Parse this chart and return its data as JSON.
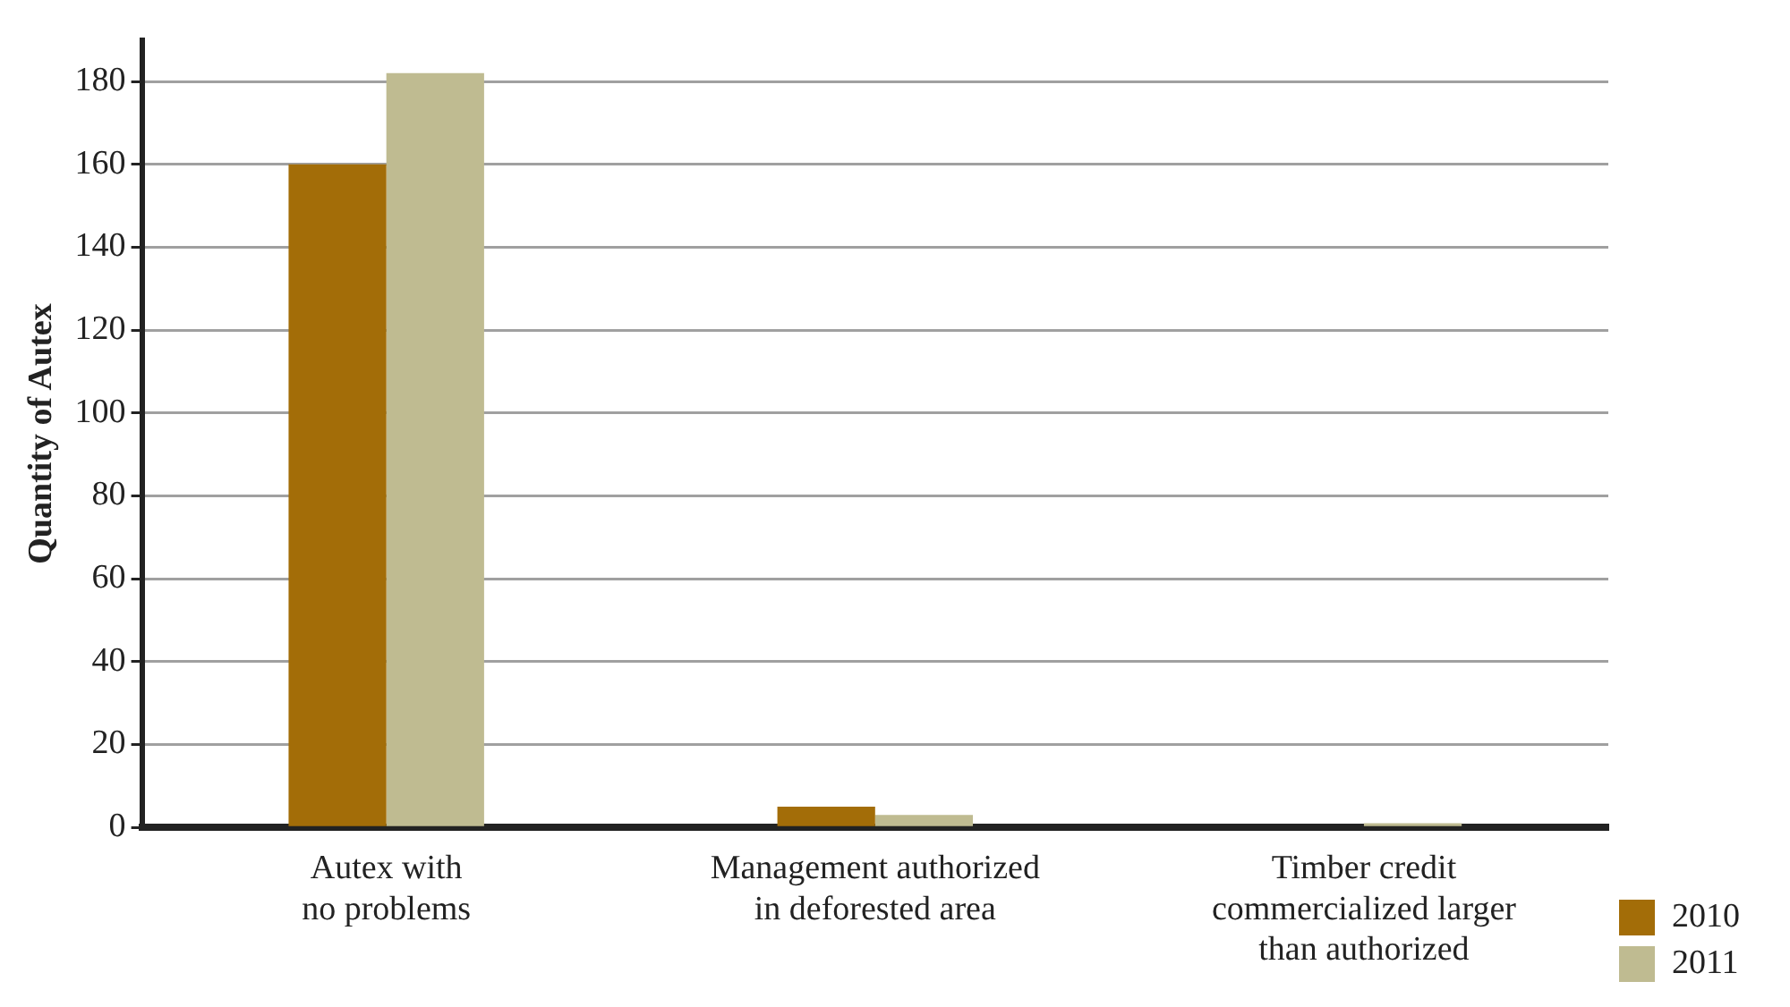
{
  "chart_data": {
    "type": "bar",
    "ylabel": "Quantity of Autex",
    "categories": [
      "Autex with\nno problems",
      "Management authorized\nin deforested area",
      "Timber credit\ncommercialized larger\nthan authorized"
    ],
    "series": [
      {
        "name": "2010",
        "color": "#a36d08",
        "values": [
          160,
          5,
          0
        ]
      },
      {
        "name": "2011",
        "color": "#bfbb91",
        "values": [
          182,
          3,
          1
        ]
      }
    ],
    "ylim": [
      0,
      190
    ],
    "yticks": [
      0,
      20,
      40,
      60,
      80,
      100,
      120,
      140,
      160,
      180
    ],
    "grid": "y",
    "legend": "right"
  }
}
